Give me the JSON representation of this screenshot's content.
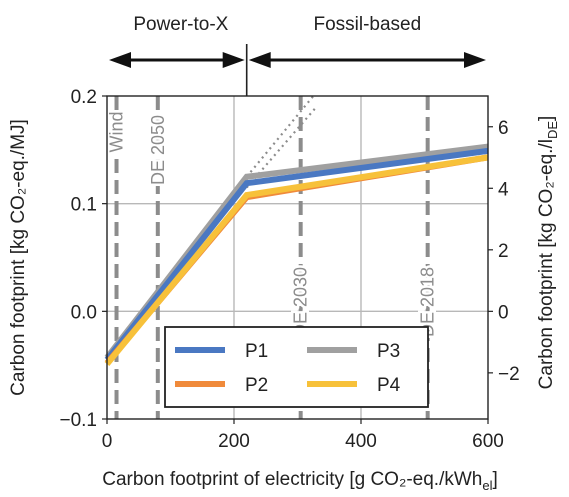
{
  "chart_data": {
    "type": "line",
    "xlabel": "Carbon footprint of electricity [g CO₂-eq./kWh",
    "xlabel_sub": "el",
    "xlabel_end": "]",
    "ylabel_left": "Carbon footprint [kg CO₂-eq./MJ]",
    "ylabel_right": "Carbon footprint [kg CO₂-eq./l",
    "ylabel_right_sub": "DE",
    "ylabel_right_end": "]",
    "xlim": [
      0,
      600
    ],
    "ylim_left": [
      -0.1,
      0.2
    ],
    "ylim_right": [
      -3.5,
      7.0
    ],
    "xticks": [
      0,
      200,
      400,
      600
    ],
    "xtick_labels": [
      "0",
      "200",
      "400",
      "600"
    ],
    "yticks_left": [
      -0.1,
      0.0,
      0.1,
      0.2
    ],
    "ytick_labels_left": [
      "−0.1",
      "0.0",
      "0.1",
      "0.2"
    ],
    "yticks_right": [
      -2,
      0,
      2,
      4,
      6
    ],
    "ytick_labels_right": [
      "−2",
      "0",
      "2",
      "4",
      "6"
    ],
    "grid": true,
    "legend_position": "bottom-center",
    "regions": [
      {
        "label": "Power-to-X",
        "from": 0,
        "to": 220
      },
      {
        "label": "Fossil-based",
        "from": 220,
        "to": 600
      }
    ],
    "vlines": [
      {
        "label": "Wind",
        "x": 15
      },
      {
        "label": "DE 2050",
        "x": 80
      },
      {
        "label": "DE 2030",
        "x": 305
      },
      {
        "label": "DE 2018",
        "x": 505
      }
    ],
    "series": [
      {
        "name": "P1",
        "color": "#4a78c2",
        "x": [
          0,
          220,
          600
        ],
        "y": [
          -0.045,
          0.119,
          0.149
        ]
      },
      {
        "name": "P2",
        "color": "#f08a3b",
        "x": [
          0,
          220,
          600
        ],
        "y": [
          -0.048,
          0.106,
          0.143
        ]
      },
      {
        "name": "P3",
        "color": "#a0a0a0",
        "x": [
          0,
          220,
          600
        ],
        "y": [
          -0.043,
          0.125,
          0.153
        ]
      },
      {
        "name": "P4",
        "color": "#f7c13a",
        "x": [
          0,
          220,
          600
        ],
        "y": [
          -0.049,
          0.108,
          0.143
        ]
      }
    ],
    "dotted_extensions": [
      {
        "color": "#8c8c8c",
        "x": [
          220,
          325
        ],
        "y": [
          0.125,
          0.2
        ]
      },
      {
        "color": "#8c8c8c",
        "x": [
          220,
          330
        ],
        "y": [
          0.115,
          0.19
        ]
      }
    ]
  }
}
